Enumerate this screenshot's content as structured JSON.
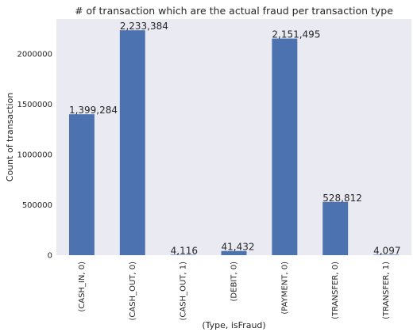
{
  "chart_data": {
    "type": "bar",
    "title": "# of transaction which are the actual fraud per transaction type",
    "xlabel": "(Type, isFraud)",
    "ylabel": "Count of transaction",
    "categories": [
      "(CASH_IN, 0)",
      "(CASH_OUT, 0)",
      "(CASH_OUT, 1)",
      "(DEBIT, 0)",
      "(PAYMENT, 0)",
      "(TRANSFER, 0)",
      "(TRANSFER, 1)"
    ],
    "values": [
      1399284,
      2233384,
      4116,
      41432,
      2151495,
      528812,
      4097
    ],
    "data_labels": [
      "1,399,284",
      "2,233,384",
      "4,116",
      "41,432",
      "2,151,495",
      "528,812",
      "4,097"
    ],
    "ylim": [
      0,
      2345053
    ],
    "yticks": [
      0,
      500000,
      1000000,
      1500000,
      2000000
    ],
    "ytick_labels": [
      "0",
      "500000",
      "1000000",
      "1500000",
      "2000000"
    ],
    "grid": false,
    "colors": {
      "bar": "#4c72b0",
      "plot_background": "#eaeaf2",
      "text": "#262626"
    }
  }
}
